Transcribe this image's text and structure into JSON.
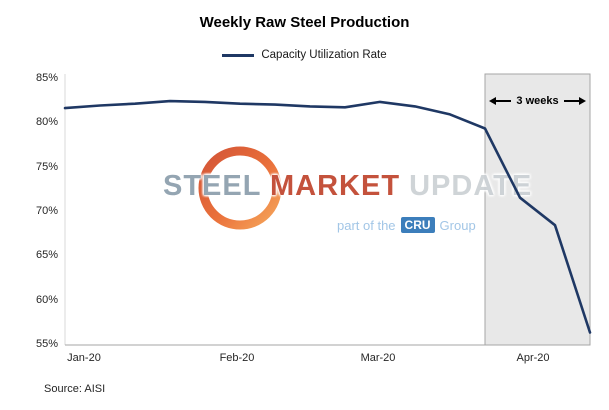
{
  "title": "Weekly Raw Steel Production",
  "legend": {
    "label": "Capacity Utilization Rate"
  },
  "annotation": "3 weeks",
  "source": "Source: AISI",
  "watermark": {
    "steel": "STEEL",
    "market": "MARKET",
    "update": "UPDATE",
    "part_of_the": "part of the",
    "cru": "CRU",
    "group": "Group"
  },
  "colors": {
    "line": "#1f3864",
    "shade_fill": "#e8e8e8",
    "shade_border": "#a6a6a6",
    "axis": "#a6a6a6",
    "watermark_steel": "#8c9fad",
    "watermark_market": "#c0452e",
    "watermark_update": "#ccd1d5",
    "watermark_blue": "#9cc2e5",
    "cru_box_bg": "#2e75b6",
    "ring_red": "#d04727",
    "ring_orange": "#f6a14f"
  },
  "chart_data": {
    "type": "line",
    "title": "Weekly Raw Steel Production",
    "series": [
      {
        "name": "Capacity Utilization Rate",
        "color": "#1f3864",
        "values": [
          81.6,
          81.9,
          82.1,
          82.4,
          82.3,
          82.1,
          82.0,
          81.8,
          81.7,
          82.3,
          81.8,
          80.9,
          79.3,
          71.5,
          68.4,
          56.3
        ]
      }
    ],
    "x_unit": "week",
    "x_tick_labels": [
      "Jan-20",
      "Feb-20",
      "Mar-20",
      "Apr-20"
    ],
    "y_tick_labels": [
      "55%",
      "60%",
      "65%",
      "70%",
      "75%",
      "80%",
      "85%"
    ],
    "ylim": [
      55,
      85
    ],
    "grid": false,
    "legend_position": "top",
    "shaded_region": {
      "start_index": 12,
      "end_index": 15,
      "label": "3 weeks"
    },
    "annotations": [
      "3 weeks"
    ],
    "source": "Source: AISI"
  }
}
